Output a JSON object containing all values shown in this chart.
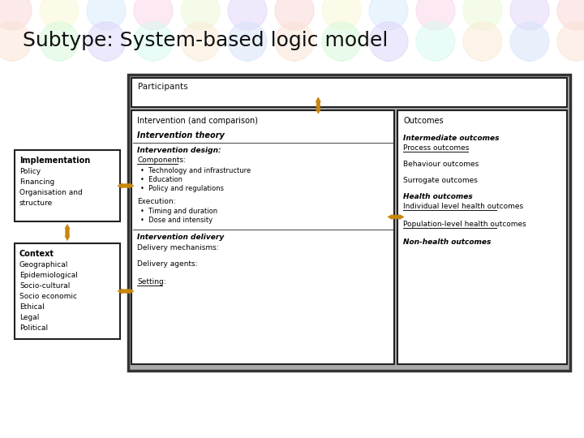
{
  "title": "Subtype: System-based logic model",
  "title_fontsize": 18,
  "bg_color": "#ffffff",
  "arrow_color": "#C8860A",
  "participants_label": "Participants",
  "intervention_label": "Intervention (and comparison)",
  "outcomes_label": "Outcomes",
  "intervention_theory": "Intervention theory",
  "intervention_design": "Intervention design:",
  "components_label": "Components:",
  "components_items": [
    "Technology and infrastructure",
    "Education",
    "Policy and regulations"
  ],
  "execution_label": "Execution:",
  "execution_items": [
    "Timing and duration",
    "Dose and intensity"
  ],
  "intervention_delivery": "Intervention delivery",
  "delivery_mechanisms": "Delivery mechanisms:",
  "delivery_agents": "Delivery agents:",
  "setting": "Setting:",
  "intermediate_outcomes": "Intermediate outcomes",
  "process_outcomes": "Process outcomes",
  "behaviour_outcomes": "Behaviour outcomes",
  "surrogate_outcomes": "Surrogate outcomes",
  "health_outcomes": "Health outcomes",
  "individual_health": "Individual level health outcomes",
  "population_health": "Population-level health outcomes",
  "non_health": "Non-health outcomes",
  "implementation_title": "Implementation",
  "implementation_items": [
    "Policy",
    "Financing",
    "Organisation and",
    "structure"
  ],
  "context_title": "Context",
  "context_items": [
    "Geographical",
    "Epidemiological",
    "Socio-cultural",
    "Socio economic",
    "Ethical",
    "Legal",
    "Political"
  ],
  "puzzle_colors": [
    "#f4a0a0",
    "#f4c0a0",
    "#f4f0a0",
    "#a0f4a8",
    "#a0d0f4",
    "#b0a0f4",
    "#f4a0d0",
    "#a0f4e0",
    "#d0f4a0",
    "#f4d0a0",
    "#c0a0f4",
    "#a0c0f4"
  ]
}
